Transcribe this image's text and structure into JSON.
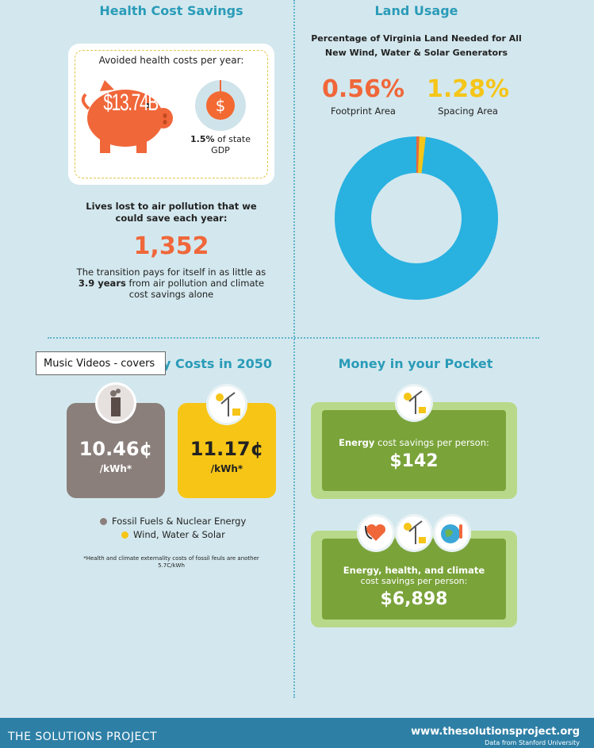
{
  "health": {
    "title": "Health Cost Savings",
    "avoided_label": "Avoided health costs per year:",
    "amount": "$13.74B",
    "dollar_symbol": "$",
    "gdp_pct": "1.5%",
    "gdp_rest": " of state",
    "gdp_tail": "GDP",
    "lives_title": "Lives lost to air pollution that we could save each year:",
    "lives_number": "1,352",
    "transition_line1": "The transition pays for itself in as little as",
    "transition_bold": "3.9 years",
    "transition_line2": " from air pollution and climate",
    "transition_line3": "cost savings alone"
  },
  "land": {
    "title": "Land Usage",
    "subtitle_line1": "Percentage of Virginia Land Needed for All",
    "subtitle_line2": "New Wind, Water & Solar Generators",
    "footprint_value": "0.56%",
    "footprint_label": "Footprint Area",
    "spacing_value": "1.28%",
    "spacing_label": "Spacing Area",
    "colors": {
      "footprint": "#e8683a",
      "spacing": "#f5c518",
      "rest": "#29b1e0"
    }
  },
  "costs": {
    "title_visible": "y Costs in 2050",
    "fossil_value": "10.46¢",
    "fossil_unit": "/kWh*",
    "wws_value": "11.17¢",
    "wws_unit": "/kWh*",
    "legend_fossil": "Fossil Fuels & Nuclear Energy",
    "legend_wws": "Wind, Water & Solar",
    "footnote_line1": "*Health and climate externality costs of fossil feuls are another",
    "footnote_line2": "5.7C/kWh",
    "colors": {
      "fossil": "#8a7f7b",
      "wws": "#f7c516"
    }
  },
  "money": {
    "title": "Money in your Pocket",
    "energy_bold": "Energy",
    "energy_rest": " cost savings per person:",
    "energy_amount": "$142",
    "combo_line1": "Energy, health, and climate",
    "combo_line2": "cost savings per person:",
    "combo_amount": "$6,898"
  },
  "tooltip": {
    "text": "Music Videos - covers"
  },
  "footer": {
    "logo": "THE SOLUTIONS PROJECT",
    "url": "www.thesolutionsproject.org",
    "source": "Data from Stanford University"
  }
}
